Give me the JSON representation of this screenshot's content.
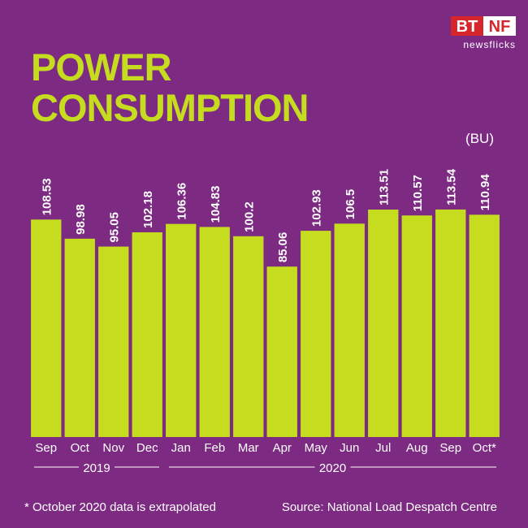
{
  "chart_data": {
    "type": "bar",
    "title": "POWER CONSUMPTION",
    "unit": "(BU)",
    "categories": [
      "Sep",
      "Oct",
      "Nov",
      "Dec",
      "Jan",
      "Feb",
      "Mar",
      "Apr",
      "May",
      "Jun",
      "Jul",
      "Aug",
      "Sep",
      "Oct*"
    ],
    "values": [
      108.53,
      98.98,
      95.05,
      102.18,
      106.36,
      104.83,
      100.2,
      85.06,
      102.93,
      106.5,
      113.51,
      110.57,
      113.54,
      110.94
    ],
    "color": "#c5dc1f",
    "ylim": [
      0,
      120
    ],
    "groups": [
      {
        "label": "2019",
        "span": 4
      },
      {
        "label": "2020",
        "span": 10
      }
    ],
    "footnote": "* October 2020 data is extrapolated",
    "source": "Source: National Load Despatch Centre"
  },
  "logo": {
    "left": "BT",
    "right": "NF",
    "tagline": "newsflicks"
  }
}
